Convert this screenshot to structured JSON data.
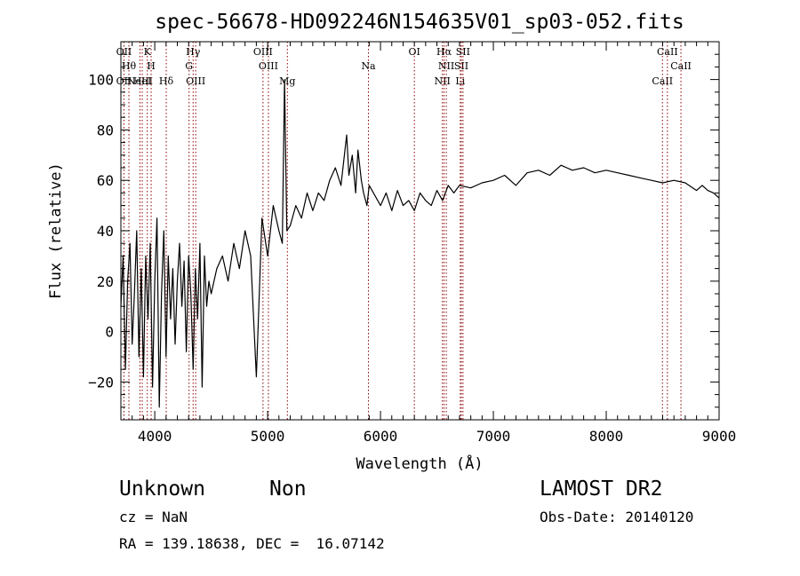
{
  "chart_data": {
    "type": "line",
    "title": "spec-56678-HD092246N154635V01_sp03-052.fits",
    "xlabel": "Wavelength (Å)",
    "ylabel": "Flux (relative)",
    "xlim": [
      3700,
      9000
    ],
    "ylim": [
      -35,
      115
    ],
    "x_ticks": [
      4000,
      5000,
      6000,
      7000,
      8000,
      9000
    ],
    "x_tick_labels": [
      "4000",
      "5000",
      "6000",
      "7000",
      "8000",
      "9000"
    ],
    "y_ticks": [
      -20,
      0,
      20,
      40,
      60,
      80,
      100
    ],
    "y_tick_labels": [
      "−20",
      "0",
      "20",
      "40",
      "60",
      "80",
      "100"
    ],
    "grid": false,
    "line_color": "#000000",
    "marker_line_color": "#8b0000",
    "series": [
      {
        "x": [
          3700,
          3720,
          3740,
          3760,
          3780,
          3800,
          3820,
          3840,
          3860,
          3880,
          3900,
          3920,
          3940,
          3960,
          3980,
          4000,
          4020,
          4040,
          4060,
          4080,
          4100,
          4120,
          4140,
          4160,
          4180,
          4200,
          4220,
          4240,
          4260,
          4280,
          4300,
          4320,
          4340,
          4360,
          4380,
          4400,
          4420,
          4440,
          4460,
          4480,
          4500,
          4550,
          4600,
          4650,
          4700,
          4750,
          4800,
          4850,
          4900,
          4950,
          5000,
          5050,
          5100,
          5130,
          5150,
          5170,
          5200,
          5250,
          5300,
          5350,
          5400,
          5450,
          5500,
          5550,
          5600,
          5650,
          5700,
          5720,
          5750,
          5780,
          5800,
          5830,
          5850,
          5880,
          5900,
          5950,
          6000,
          6050,
          6100,
          6150,
          6200,
          6250,
          6300,
          6350,
          6400,
          6450,
          6500,
          6550,
          6600,
          6650,
          6700,
          6800,
          6900,
          7000,
          7100,
          7200,
          7300,
          7400,
          7500,
          7600,
          7700,
          7800,
          7900,
          8000,
          8100,
          8200,
          8300,
          8400,
          8500,
          8600,
          8700,
          8800,
          8850,
          8900,
          8950,
          9000
        ],
        "y": [
          10,
          30,
          -15,
          20,
          35,
          -5,
          15,
          40,
          -10,
          25,
          -18,
          30,
          5,
          35,
          -22,
          20,
          45,
          -30,
          15,
          40,
          -10,
          30,
          5,
          25,
          -5,
          20,
          35,
          10,
          28,
          -8,
          30,
          15,
          -15,
          25,
          5,
          35,
          -22,
          30,
          10,
          20,
          15,
          25,
          30,
          20,
          35,
          25,
          40,
          30,
          -18,
          45,
          30,
          50,
          40,
          35,
          100,
          40,
          42,
          50,
          45,
          55,
          48,
          55,
          52,
          60,
          65,
          58,
          78,
          62,
          70,
          55,
          72,
          60,
          55,
          50,
          58,
          54,
          50,
          55,
          48,
          56,
          50,
          52,
          48,
          55,
          52,
          50,
          56,
          52,
          58,
          55,
          58,
          57,
          59,
          60,
          62,
          58,
          63,
          64,
          62,
          66,
          64,
          65,
          63,
          64,
          63,
          62,
          61,
          60,
          59,
          60,
          59,
          56,
          58,
          56,
          55,
          53
        ]
      }
    ],
    "line_markers": [
      {
        "wl": 3727,
        "upper": "OII",
        "lower": "OII"
      },
      {
        "wl": 3771,
        "upper": "Hθ",
        "lower": ""
      },
      {
        "wl": 3869,
        "upper": "",
        "lower": "NeIII"
      },
      {
        "wl": 3889,
        "upper": "",
        "lower": "HeI"
      },
      {
        "wl": 3934,
        "upper": "K",
        "lower": ""
      },
      {
        "wl": 3968,
        "upper": "H",
        "lower": ""
      },
      {
        "wl": 4102,
        "upper": "",
        "lower": "Hδ"
      },
      {
        "wl": 4304,
        "upper": "G",
        "lower": ""
      },
      {
        "wl": 4340,
        "upper": "Hγ",
        "lower": ""
      },
      {
        "wl": 4363,
        "upper": "",
        "lower": "OIII"
      },
      {
        "wl": 4959,
        "upper": "OIII",
        "lower": ""
      },
      {
        "wl": 5007,
        "upper": "OIII",
        "lower": ""
      },
      {
        "wl": 5175,
        "upper": "",
        "lower": "Mg"
      },
      {
        "wl": 5893,
        "upper": "Na",
        "lower": ""
      },
      {
        "wl": 6300,
        "upper": "OI",
        "lower": ""
      },
      {
        "wl": 6548,
        "upper": "",
        "lower": "NII"
      },
      {
        "wl": 6563,
        "upper": "Hα",
        "lower": ""
      },
      {
        "wl": 6583,
        "upper": "NII",
        "lower": ""
      },
      {
        "wl": 6707,
        "upper": "",
        "lower": "Li"
      },
      {
        "wl": 6716,
        "upper": "SII",
        "lower": ""
      },
      {
        "wl": 6731,
        "upper": "SII",
        "lower": ""
      },
      {
        "wl": 8498,
        "upper": "",
        "lower": "CaII"
      },
      {
        "wl": 8542,
        "upper": "CaII",
        "lower": ""
      },
      {
        "wl": 8662,
        "upper": "CaII",
        "lower": ""
      }
    ]
  },
  "info": {
    "class_label": "Unknown",
    "subclass_label": "Non",
    "survey": "LAMOST DR2",
    "redshift": "cz = NaN",
    "obs_date": "Obs-Date: 20140120",
    "coords": "RA = 139.18638, DEC =  16.07142"
  }
}
